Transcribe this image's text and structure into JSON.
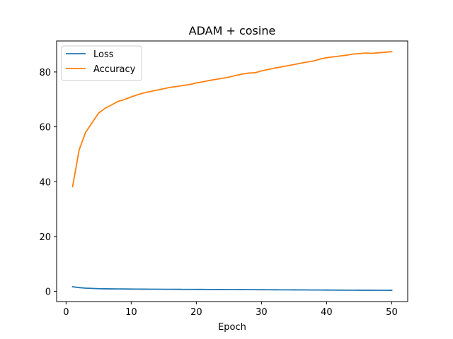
{
  "chart_data": {
    "type": "line",
    "title": "ADAM + cosine",
    "xlabel": "Epoch",
    "ylabel": "",
    "xlim": [
      -1.45,
      52.45
    ],
    "ylim": [
      -3.7,
      91.3
    ],
    "xticks": [
      0,
      10,
      20,
      30,
      40,
      50
    ],
    "yticks": [
      0,
      20,
      40,
      60,
      80
    ],
    "legend_position": "top-left",
    "grid": false,
    "x": [
      1,
      2,
      3,
      4,
      5,
      6,
      7,
      8,
      9,
      10,
      11,
      12,
      13,
      14,
      15,
      16,
      17,
      18,
      19,
      20,
      21,
      22,
      23,
      24,
      25,
      26,
      27,
      28,
      29,
      30,
      31,
      32,
      33,
      34,
      35,
      36,
      37,
      38,
      39,
      40,
      41,
      42,
      43,
      44,
      45,
      46,
      47,
      48,
      49,
      50
    ],
    "series": [
      {
        "name": "Loss",
        "color": "#1f77b4",
        "values": [
          1.7,
          1.4,
          1.2,
          1.1,
          1.0,
          0.95,
          0.92,
          0.9,
          0.88,
          0.86,
          0.84,
          0.82,
          0.81,
          0.8,
          0.78,
          0.77,
          0.76,
          0.75,
          0.74,
          0.73,
          0.72,
          0.71,
          0.7,
          0.69,
          0.68,
          0.67,
          0.66,
          0.65,
          0.64,
          0.63,
          0.62,
          0.6,
          0.59,
          0.57,
          0.56,
          0.55,
          0.54,
          0.52,
          0.51,
          0.5,
          0.48,
          0.47,
          0.46,
          0.45,
          0.44,
          0.43,
          0.43,
          0.42,
          0.42,
          0.41
        ]
      },
      {
        "name": "Accuracy",
        "color": "#ff7f0e",
        "values": [
          38.2,
          51.5,
          58.0,
          61.5,
          65.0,
          66.8,
          68.0,
          69.3,
          70.0,
          70.9,
          71.7,
          72.4,
          72.9,
          73.4,
          73.9,
          74.4,
          74.7,
          75.1,
          75.4,
          76.0,
          76.4,
          76.9,
          77.3,
          77.7,
          78.1,
          78.7,
          79.2,
          79.6,
          79.7,
          80.4,
          80.9,
          81.4,
          81.8,
          82.3,
          82.7,
          83.2,
          83.6,
          84.0,
          84.7,
          85.2,
          85.5,
          85.8,
          86.1,
          86.5,
          86.7,
          86.9,
          86.8,
          87.0,
          87.2,
          87.4
        ]
      }
    ]
  }
}
